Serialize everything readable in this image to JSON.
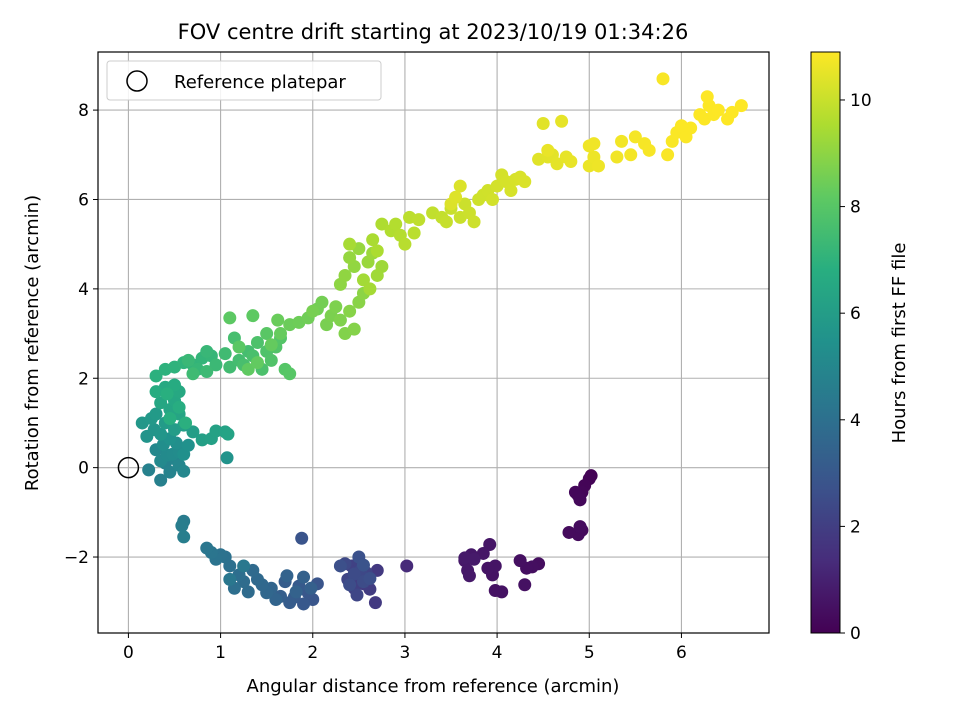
{
  "chart_data": {
    "type": "scatter",
    "title": "FOV centre drift starting at 2023/10/19 01:34:26",
    "xlabel": "Angular distance from reference (arcmin)",
    "ylabel": "Rotation from reference (arcmin)",
    "xlim": [
      -0.33,
      6.95
    ],
    "ylim": [
      -3.7,
      9.3
    ],
    "xticks": [
      "0",
      "1",
      "2",
      "3",
      "4",
      "5",
      "6"
    ],
    "yticks": [
      "−2",
      "0",
      "2",
      "4",
      "6",
      "8"
    ],
    "grid": true,
    "legend": {
      "placement": "top-left",
      "entries": [
        "Reference platepar"
      ]
    },
    "reference_point": {
      "x": 0,
      "y": 0
    },
    "colorbar": {
      "label": "Hours from first FF file",
      "colormap": "viridis",
      "range": [
        0,
        10.9
      ],
      "ticks": [
        "0",
        "2",
        "4",
        "6",
        "8",
        "10"
      ]
    },
    "points": [
      [
        5.02,
        -0.18,
        0.05
      ],
      [
        5.0,
        -0.25,
        0.08
      ],
      [
        4.95,
        -0.4,
        0.12
      ],
      [
        4.92,
        -0.55,
        0.15
      ],
      [
        4.88,
        -0.62,
        0.18
      ],
      [
        4.85,
        -0.55,
        0.2
      ],
      [
        4.9,
        -0.72,
        0.22
      ],
      [
        4.92,
        -1.4,
        0.28
      ],
      [
        4.88,
        -1.5,
        0.3
      ],
      [
        4.78,
        -1.45,
        0.32
      ],
      [
        4.9,
        -1.32,
        0.34
      ],
      [
        4.45,
        -2.15,
        0.4
      ],
      [
        4.38,
        -2.22,
        0.42
      ],
      [
        4.32,
        -2.25,
        0.44
      ],
      [
        4.25,
        -2.08,
        0.46
      ],
      [
        4.3,
        -2.62,
        0.48
      ],
      [
        4.05,
        -2.78,
        0.52
      ],
      [
        3.98,
        -2.75,
        0.54
      ],
      [
        3.95,
        -2.4,
        0.56
      ],
      [
        3.98,
        -2.2,
        0.58
      ],
      [
        3.9,
        -2.25,
        0.6
      ],
      [
        3.92,
        -1.72,
        0.62
      ],
      [
        3.85,
        -1.92,
        0.64
      ],
      [
        3.72,
        -1.95,
        0.68
      ],
      [
        3.65,
        -2.08,
        0.7
      ],
      [
        3.68,
        -2.3,
        0.72
      ],
      [
        3.7,
        -2.42,
        0.74
      ],
      [
        3.65,
        -2.02,
        0.76
      ],
      [
        3.75,
        -2.05,
        0.78
      ],
      [
        3.02,
        -2.2,
        1.3
      ],
      [
        2.7,
        -2.3,
        1.8
      ],
      [
        2.68,
        -3.02,
        1.85
      ],
      [
        2.62,
        -2.72,
        1.9
      ],
      [
        2.55,
        -2.6,
        1.95
      ],
      [
        2.5,
        -2.45,
        2.0
      ],
      [
        2.45,
        -2.7,
        2.05
      ],
      [
        2.42,
        -2.2,
        2.1
      ],
      [
        2.5,
        -2.1,
        2.15
      ],
      [
        2.58,
        -2.35,
        2.2
      ],
      [
        2.38,
        -2.5,
        2.25
      ],
      [
        2.48,
        -2.85,
        2.3
      ],
      [
        2.52,
        -2.3,
        2.35
      ],
      [
        2.35,
        -2.15,
        2.4
      ],
      [
        2.45,
        -2.38,
        2.45
      ],
      [
        2.55,
        -2.55,
        2.5
      ],
      [
        2.4,
        -2.62,
        2.55
      ],
      [
        2.62,
        -2.48,
        2.6
      ],
      [
        2.3,
        -2.2,
        2.65
      ],
      [
        2.5,
        -2.0,
        2.7
      ],
      [
        2.55,
        -2.18,
        2.75
      ],
      [
        1.88,
        -1.58,
        2.8
      ],
      [
        2.05,
        -2.6,
        2.85
      ],
      [
        2.0,
        -2.95,
        2.9
      ],
      [
        1.95,
        -2.8,
        2.95
      ],
      [
        1.9,
        -3.05,
        3.0
      ],
      [
        1.85,
        -2.65,
        3.05
      ],
      [
        1.8,
        -2.9,
        3.1
      ],
      [
        1.75,
        -3.02,
        3.15
      ],
      [
        1.7,
        -2.55,
        3.2
      ],
      [
        1.65,
        -2.88,
        3.25
      ],
      [
        1.98,
        -2.7,
        3.3
      ],
      [
        1.9,
        -2.45,
        3.35
      ],
      [
        1.82,
        -2.78,
        3.4
      ],
      [
        1.72,
        -2.42,
        3.45
      ],
      [
        1.6,
        -2.95,
        3.5
      ],
      [
        1.55,
        -2.7,
        3.55
      ],
      [
        1.5,
        -2.8,
        3.6
      ],
      [
        1.45,
        -2.62,
        3.65
      ],
      [
        1.4,
        -2.5,
        3.7
      ],
      [
        1.35,
        -2.3,
        3.75
      ],
      [
        1.3,
        -2.78,
        3.8
      ],
      [
        1.25,
        -2.55,
        3.85
      ],
      [
        1.2,
        -2.4,
        3.9
      ],
      [
        1.15,
        -2.7,
        3.95
      ],
      [
        1.1,
        -2.2,
        4.0
      ],
      [
        1.05,
        -2.0,
        4.05
      ],
      [
        1.0,
        -1.95,
        4.1
      ],
      [
        0.95,
        -2.05,
        4.15
      ],
      [
        0.9,
        -1.9,
        4.2
      ],
      [
        0.85,
        -1.8,
        4.25
      ],
      [
        1.1,
        -2.5,
        4.3
      ],
      [
        1.25,
        -2.2,
        4.35
      ],
      [
        0.6,
        -1.2,
        4.5
      ],
      [
        0.58,
        -1.3,
        4.55
      ],
      [
        0.6,
        -1.55,
        4.6
      ],
      [
        0.35,
        -0.28,
        4.7
      ],
      [
        0.22,
        -0.05,
        4.75
      ],
      [
        0.4,
        0.1,
        4.8
      ],
      [
        0.45,
        -0.1,
        4.85
      ],
      [
        0.5,
        0.2,
        4.9
      ],
      [
        0.55,
        0.05,
        4.95
      ],
      [
        0.6,
        -0.08,
        5.0
      ],
      [
        0.3,
        0.4,
        5.05
      ],
      [
        0.35,
        0.15,
        5.1
      ],
      [
        0.42,
        0.28,
        5.15
      ],
      [
        0.48,
        0.3,
        5.2
      ],
      [
        0.55,
        0.35,
        5.25
      ],
      [
        0.38,
        0.52,
        5.3
      ],
      [
        0.52,
        0.55,
        5.35
      ],
      [
        0.6,
        0.3,
        5.4
      ],
      [
        0.65,
        0.5,
        5.45
      ],
      [
        0.45,
        0.65,
        5.5
      ],
      [
        1.07,
        0.22,
        5.55
      ],
      [
        0.2,
        0.7,
        5.6
      ],
      [
        0.28,
        0.85,
        5.65
      ],
      [
        0.35,
        0.75,
        5.7
      ],
      [
        0.15,
        1.0,
        5.75
      ],
      [
        0.25,
        1.1,
        5.8
      ],
      [
        0.3,
        1.2,
        5.85
      ],
      [
        0.4,
        1.0,
        5.9
      ],
      [
        0.5,
        0.85,
        5.95
      ],
      [
        0.7,
        0.8,
        6.0
      ],
      [
        0.6,
        0.95,
        6.05
      ],
      [
        0.8,
        0.62,
        6.1
      ],
      [
        0.9,
        0.65,
        6.15
      ],
      [
        0.95,
        0.82,
        6.2
      ],
      [
        1.05,
        0.8,
        6.25
      ],
      [
        1.08,
        0.75,
        6.3
      ],
      [
        0.55,
        1.2,
        6.35
      ],
      [
        0.45,
        1.3,
        6.4
      ],
      [
        0.35,
        1.45,
        6.45
      ],
      [
        0.5,
        1.5,
        6.5
      ],
      [
        0.55,
        1.7,
        6.55
      ],
      [
        0.4,
        1.8,
        6.6
      ],
      [
        0.5,
        1.85,
        6.65
      ],
      [
        0.3,
        1.7,
        6.7
      ],
      [
        0.55,
        1.35,
        6.75
      ],
      [
        0.45,
        1.1,
        6.8
      ],
      [
        0.42,
        1.65,
        6.85
      ],
      [
        0.62,
        1.0,
        6.88
      ],
      [
        0.3,
        2.05,
        6.92
      ],
      [
        0.4,
        2.2,
        6.96
      ],
      [
        0.5,
        2.25,
        7.0
      ],
      [
        0.6,
        2.35,
        7.04
      ],
      [
        0.7,
        2.3,
        7.08
      ],
      [
        0.8,
        2.45,
        7.12
      ],
      [
        0.9,
        2.5,
        7.16
      ],
      [
        0.75,
        2.2,
        7.2
      ],
      [
        0.85,
        2.6,
        7.24
      ],
      [
        0.65,
        2.4,
        7.28
      ],
      [
        0.95,
        2.3,
        7.32
      ],
      [
        0.85,
        2.15,
        7.36
      ],
      [
        0.7,
        2.1,
        7.4
      ],
      [
        1.05,
        2.55,
        7.44
      ],
      [
        1.1,
        2.25,
        7.48
      ],
      [
        1.2,
        2.4,
        7.52
      ],
      [
        1.3,
        2.6,
        7.56
      ],
      [
        1.15,
        2.9,
        7.6
      ],
      [
        1.25,
        2.3,
        7.64
      ],
      [
        1.35,
        2.5,
        7.68
      ],
      [
        1.45,
        2.2,
        7.72
      ],
      [
        1.4,
        2.8,
        7.76
      ],
      [
        1.5,
        2.6,
        7.8
      ],
      [
        1.55,
        2.4,
        7.84
      ],
      [
        1.6,
        2.7,
        7.88
      ],
      [
        1.65,
        2.9,
        7.92
      ],
      [
        1.7,
        2.2,
        7.96
      ],
      [
        1.75,
        2.1,
        8.0
      ],
      [
        1.5,
        3.0,
        8.04
      ],
      [
        1.2,
        2.7,
        8.08
      ],
      [
        1.1,
        3.35,
        8.12
      ],
      [
        1.35,
        3.4,
        8.16
      ],
      [
        1.3,
        2.2,
        8.2
      ],
      [
        1.4,
        2.35,
        8.24
      ],
      [
        1.55,
        2.75,
        8.28
      ],
      [
        1.65,
        3.0,
        8.32
      ],
      [
        1.62,
        3.3,
        8.36
      ],
      [
        1.75,
        3.2,
        8.4
      ],
      [
        1.85,
        3.25,
        8.44
      ],
      [
        1.95,
        3.35,
        8.48
      ],
      [
        2.05,
        3.55,
        8.52
      ],
      [
        2.1,
        3.7,
        8.56
      ],
      [
        2.0,
        3.5,
        8.6
      ],
      [
        2.15,
        3.2,
        8.64
      ],
      [
        2.2,
        3.4,
        8.68
      ],
      [
        2.25,
        3.6,
        8.72
      ],
      [
        2.3,
        3.3,
        8.76
      ],
      [
        2.35,
        3.0,
        8.8
      ],
      [
        2.45,
        3.1,
        8.84
      ],
      [
        2.4,
        3.5,
        8.88
      ],
      [
        2.5,
        3.7,
        8.92
      ],
      [
        2.55,
        3.9,
        8.96
      ],
      [
        2.3,
        4.1,
        9.0
      ],
      [
        2.35,
        4.3,
        9.04
      ],
      [
        2.45,
        4.5,
        9.08
      ],
      [
        2.4,
        4.7,
        9.12
      ],
      [
        2.5,
        4.9,
        9.16
      ],
      [
        2.6,
        4.6,
        9.2
      ],
      [
        2.65,
        4.8,
        9.24
      ],
      [
        2.75,
        4.5,
        9.28
      ],
      [
        2.7,
        4.3,
        9.32
      ],
      [
        2.55,
        4.2,
        9.36
      ],
      [
        2.62,
        4.0,
        9.4
      ],
      [
        2.4,
        5.0,
        9.44
      ],
      [
        2.65,
        5.1,
        9.48
      ],
      [
        2.7,
        4.85,
        9.52
      ],
      [
        2.75,
        5.45,
        9.56
      ],
      [
        2.85,
        5.3,
        9.6
      ],
      [
        2.9,
        5.45,
        9.64
      ],
      [
        2.95,
        5.2,
        9.68
      ],
      [
        3.0,
        5.0,
        9.72
      ],
      [
        3.1,
        5.25,
        9.76
      ],
      [
        3.05,
        5.6,
        9.8
      ],
      [
        3.15,
        5.55,
        9.84
      ],
      [
        3.3,
        5.7,
        9.88
      ],
      [
        3.4,
        5.6,
        9.92
      ],
      [
        3.45,
        5.5,
        9.96
      ],
      [
        3.5,
        5.8,
        10.0
      ],
      [
        3.6,
        5.6,
        10.02
      ],
      [
        3.65,
        5.9,
        10.04
      ],
      [
        3.7,
        5.7,
        10.06
      ],
      [
        3.75,
        5.5,
        10.08
      ],
      [
        3.8,
        6.0,
        10.1
      ],
      [
        3.85,
        6.1,
        10.12
      ],
      [
        3.9,
        6.2,
        10.14
      ],
      [
        3.95,
        6.0,
        10.16
      ],
      [
        4.0,
        6.3,
        10.18
      ],
      [
        4.05,
        6.55,
        10.2
      ],
      [
        4.1,
        6.4,
        10.22
      ],
      [
        4.15,
        6.2,
        10.24
      ],
      [
        4.2,
        6.45,
        10.26
      ],
      [
        4.25,
        6.5,
        10.28
      ],
      [
        4.3,
        6.4,
        10.3
      ],
      [
        3.6,
        6.3,
        10.32
      ],
      [
        3.5,
        5.9,
        10.34
      ],
      [
        3.55,
        6.05,
        10.36
      ],
      [
        4.45,
        6.9,
        10.4
      ],
      [
        4.5,
        7.7,
        10.42
      ],
      [
        4.55,
        6.95,
        10.44
      ],
      [
        4.6,
        7.0,
        10.46
      ],
      [
        4.65,
        6.8,
        10.48
      ],
      [
        4.7,
        7.75,
        10.5
      ],
      [
        4.75,
        6.95,
        10.52
      ],
      [
        4.8,
        6.85,
        10.54
      ],
      [
        4.55,
        7.1,
        10.56
      ],
      [
        5.0,
        6.75,
        10.6
      ],
      [
        5.05,
        6.95,
        10.62
      ],
      [
        5.1,
        6.75,
        10.64
      ],
      [
        5.0,
        7.2,
        10.66
      ],
      [
        5.05,
        7.25,
        10.68
      ],
      [
        5.3,
        6.95,
        10.7
      ],
      [
        5.35,
        7.3,
        10.72
      ],
      [
        5.45,
        7.0,
        10.74
      ],
      [
        5.5,
        7.4,
        10.76
      ],
      [
        5.6,
        7.25,
        10.78
      ],
      [
        5.65,
        7.1,
        10.8
      ],
      [
        5.8,
        8.7,
        10.82
      ],
      [
        5.85,
        7.0,
        10.83
      ],
      [
        5.9,
        7.3,
        10.84
      ],
      [
        5.95,
        7.5,
        10.85
      ],
      [
        6.05,
        7.4,
        10.86
      ],
      [
        6.1,
        7.6,
        10.87
      ],
      [
        6.2,
        7.9,
        10.88
      ],
      [
        6.25,
        7.8,
        10.88
      ],
      [
        6.3,
        8.1,
        10.89
      ],
      [
        6.35,
        7.9,
        10.89
      ],
      [
        6.4,
        8.0,
        10.9
      ],
      [
        6.5,
        7.8,
        10.9
      ],
      [
        6.55,
        7.95,
        10.9
      ],
      [
        6.65,
        8.1,
        10.9
      ],
      [
        6.28,
        8.3,
        10.9
      ],
      [
        6.0,
        7.65,
        10.87
      ]
    ]
  }
}
